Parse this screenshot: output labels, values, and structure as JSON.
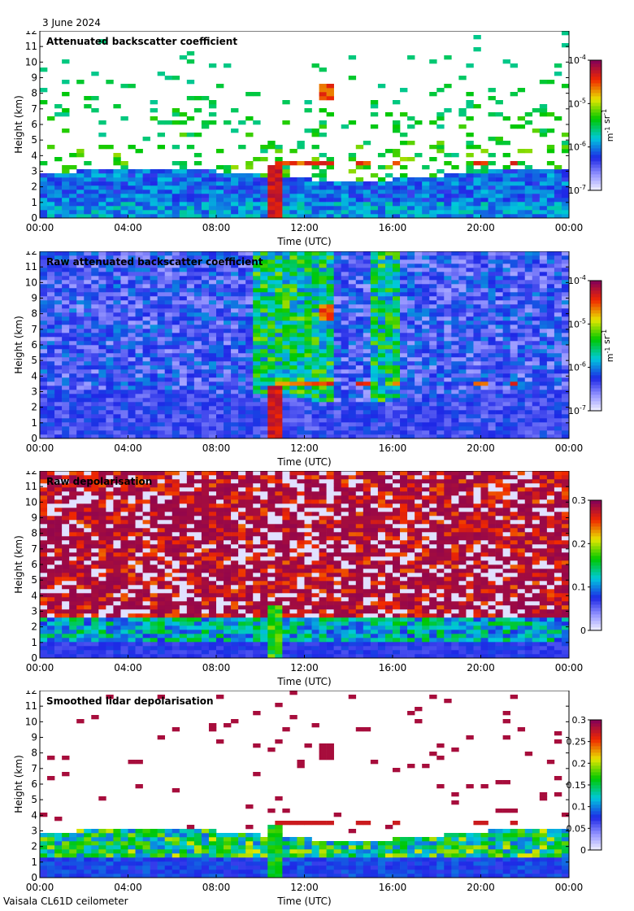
{
  "date": "3 June 2024",
  "footer": "Vaisala CL61D ceilometer",
  "chart_data": [
    {
      "type": "heatmap",
      "title": "Attenuated backscatter coefficient",
      "xlabel": "Time (UTC)",
      "ylabel": "Height (km)",
      "xticks": [
        "00:00",
        "04:00",
        "08:00",
        "12:00",
        "16:00",
        "20:00",
        "00:00"
      ],
      "yticks": [
        "0",
        "1",
        "2",
        "3",
        "4",
        "5",
        "6",
        "7",
        "8",
        "9",
        "10",
        "11",
        "12"
      ],
      "ylim": [
        0,
        12
      ],
      "xlim_hours": [
        0,
        24
      ],
      "colorbar": {
        "scale": "log",
        "ticks": [
          "10^-7",
          "10^-6",
          "10^-5",
          "10^-4"
        ],
        "unit": "m^-1 sr^-1"
      },
      "features": {
        "boundary_layer_top_km": 3.2,
        "cloud_layer_km": 3.5,
        "precip_hours": [
          10.5,
          11
        ],
        "high_cloud_km": 8,
        "high_cloud_hours": [
          12.8,
          13.2
        ]
      }
    },
    {
      "type": "heatmap",
      "title": "Raw attenuated backscatter coefficient",
      "xlabel": "Time (UTC)",
      "ylabel": "Height (km)",
      "xticks": [
        "00:00",
        "04:00",
        "08:00",
        "12:00",
        "16:00",
        "20:00",
        "00:00"
      ],
      "yticks": [
        "0",
        "1",
        "2",
        "3",
        "4",
        "5",
        "6",
        "7",
        "8",
        "9",
        "10",
        "11",
        "12"
      ],
      "ylim": [
        0,
        12
      ],
      "xlim_hours": [
        0,
        24
      ],
      "colorbar": {
        "scale": "log",
        "ticks": [
          "10^-7",
          "10^-6",
          "10^-5",
          "10^-4"
        ],
        "unit": "m^-1 sr^-1"
      },
      "features": {
        "noisy_background": true,
        "cloud_layer_km": 3.5,
        "precip_hours": [
          10.5,
          11
        ]
      }
    },
    {
      "type": "heatmap",
      "title": "Raw depolarisation",
      "xlabel": "Time (UTC)",
      "ylabel": "Height (km)",
      "xticks": [
        "00:00",
        "04:00",
        "08:00",
        "12:00",
        "16:00",
        "20:00",
        "00:00"
      ],
      "yticks": [
        "0",
        "1",
        "2",
        "3",
        "4",
        "5",
        "6",
        "7",
        "8",
        "9",
        "10",
        "11",
        "12"
      ],
      "ylim": [
        0,
        12
      ],
      "xlim_hours": [
        0,
        24
      ],
      "colorbar": {
        "scale": "linear",
        "range": [
          0,
          0.3
        ],
        "ticks": [
          "0",
          "0.1",
          "0.2",
          "0.3"
        ]
      },
      "features": {
        "noise_above_km": 3,
        "precip_hours": [
          10.5,
          11
        ]
      }
    },
    {
      "type": "heatmap",
      "title": "Smoothed lidar depolarisation",
      "xlabel": "Time (UTC)",
      "ylabel": "Height (km)",
      "xticks": [
        "00:00",
        "04:00",
        "08:00",
        "12:00",
        "16:00",
        "20:00",
        "00:00"
      ],
      "yticks": [
        "0",
        "1",
        "2",
        "3",
        "4",
        "5",
        "6",
        "7",
        "8",
        "9",
        "10",
        "11",
        "12"
      ],
      "ylim": [
        0,
        12
      ],
      "xlim_hours": [
        0,
        24
      ],
      "colorbar": {
        "scale": "linear",
        "range": [
          0,
          0.3
        ],
        "ticks": [
          "0",
          "0.05",
          "0.1",
          "0.15",
          "0.2",
          "0.25",
          "0.3"
        ]
      },
      "features": {
        "boundary_layer_top_km": 3.2,
        "cloud_layer_km": 3.5,
        "precip_hours": [
          10.5,
          11
        ]
      }
    }
  ]
}
